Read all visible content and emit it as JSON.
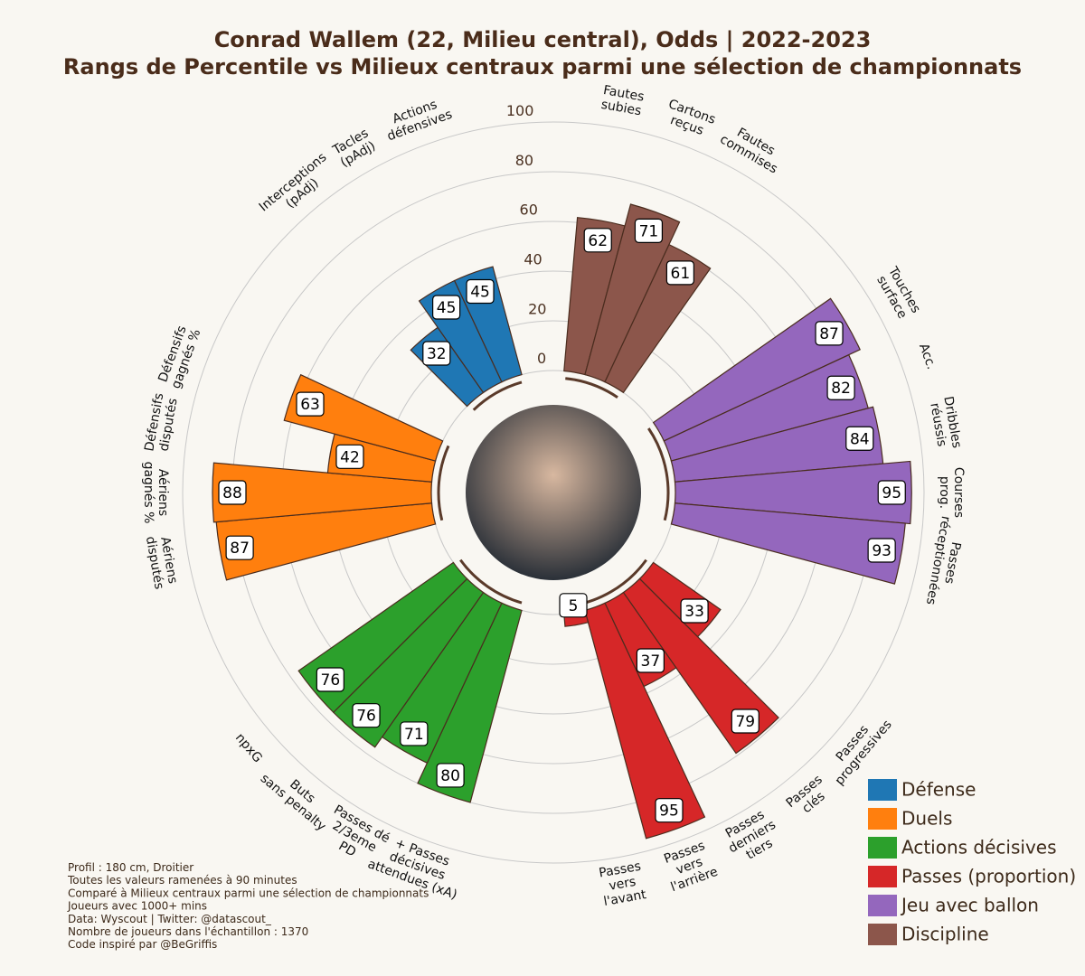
{
  "chart_data": {
    "type": "polar_bar",
    "title": "Conrad Wallem (22, Milieu central), Odds | 2022-2023",
    "subtitle": "Rangs de Percentile vs Milieux centraux parmi une sélection de championnats",
    "ylim": [
      0,
      100
    ],
    "yticks": [
      0,
      20,
      40,
      60,
      80,
      100
    ],
    "grid": true,
    "legend": "lower right",
    "series": [
      {
        "name": "Défense",
        "color": "#1f77b4",
        "categories": [
          [
            "Interceptions",
            "(pAdj)"
          ],
          [
            "Tacles",
            "(pAdj)"
          ],
          [
            "Actions",
            "défensives"
          ]
        ],
        "values": [
          32,
          45,
          45
        ]
      },
      {
        "name": "Duels",
        "color": "#ff7f0e",
        "categories": [
          [
            "Aériens",
            "disputés"
          ],
          [
            "Aériens",
            "gagnés %"
          ],
          [
            "Défensifs",
            "disputés"
          ],
          [
            "Défensifs",
            "gagnés %"
          ]
        ],
        "values": [
          87,
          88,
          42,
          63
        ]
      },
      {
        "name": "Actions décisives",
        "color": "#2ca02c",
        "categories": [
          [
            "+ Passes",
            "décisives",
            "attendues (xA)"
          ],
          [
            "Passes dé",
            "2/3eme",
            "PD"
          ],
          [
            "Buts",
            "sans penalty"
          ],
          [
            "npxG"
          ]
        ],
        "values": [
          80,
          71,
          76,
          76
        ]
      },
      {
        "name": "Passes (proportion)",
        "color": "#d62728",
        "categories": [
          [
            "Passes",
            "progressives"
          ],
          [
            "Passes",
            "clés"
          ],
          [
            "Passes",
            "derniers",
            "tiers"
          ],
          [
            "Passes",
            "vers",
            "l'arrière"
          ],
          [
            "Passes",
            "vers",
            "l'avant"
          ]
        ],
        "values": [
          33,
          79,
          37,
          95,
          5
        ]
      },
      {
        "name": "Jeu avec ballon",
        "color": "#9467bd",
        "categories": [
          [
            "Touches",
            "surface"
          ],
          [
            "Acc."
          ],
          [
            "Dribbles",
            "réussis"
          ],
          [
            "Courses",
            "prog."
          ],
          [
            "Passes",
            "réceptionnées"
          ]
        ],
        "values": [
          87,
          82,
          84,
          95,
          93
        ]
      },
      {
        "name": "Discipline",
        "color": "#8c564b",
        "categories": [
          [
            "Fautes",
            "subies"
          ],
          [
            "Cartons",
            "reçus"
          ],
          [
            "Fautes",
            "commises"
          ]
        ],
        "values": [
          62,
          71,
          61
        ]
      }
    ],
    "notes": [
      "Profil : 180 cm, Droitier",
      "Toutes les valeurs ramenées à 90 minutes",
      "Comparé à Milieux centraux parmi une sélection de championnats",
      "Joueurs avec 1000+ mins",
      "Data: Wyscout | Twitter: @datascout_",
      "Nombre de joueurs dans l'échantillon : 1370",
      "Code inspiré par @BeGriffis"
    ]
  }
}
